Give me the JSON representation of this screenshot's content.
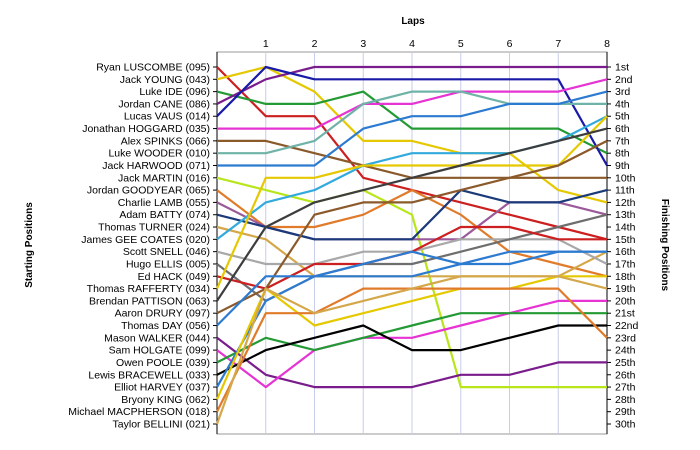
{
  "chart_data": {
    "type": "line",
    "xlabel": "Laps",
    "left_axis_label": "Starting Positions",
    "right_axis_label": "Finishing Positions",
    "laps": [
      "1",
      "2",
      "3",
      "4",
      "5",
      "6",
      "7",
      "8"
    ],
    "positions": [
      "1st",
      "2nd",
      "3rd",
      "4th",
      "5th",
      "6th",
      "7th",
      "8th",
      "9th",
      "10th",
      "11th",
      "12th",
      "13th",
      "14th",
      "15th",
      "16th",
      "17th",
      "18th",
      "19th",
      "20th",
      "21st",
      "22nd",
      "23rd",
      "24th",
      "25th",
      "26th",
      "27th",
      "28th",
      "29th",
      "30th"
    ],
    "drivers": [
      {
        "name": "Ryan LUSCOMBE (095)",
        "color": "#cc1f1f",
        "positions": [
          1,
          5,
          5,
          10,
          11,
          12,
          13,
          14,
          15
        ]
      },
      {
        "name": "Jack YOUNG (043)",
        "color": "#e6c800",
        "positions": [
          2,
          1,
          3,
          7,
          7,
          8,
          8,
          11,
          12
        ]
      },
      {
        "name": "Luke IDE (096)",
        "color": "#249a35",
        "positions": [
          3,
          4,
          4,
          3,
          6,
          6,
          6,
          6,
          8
        ]
      },
      {
        "name": "Jordan CANE (086)",
        "color": "#7a1d8c",
        "positions": [
          4,
          2,
          1,
          1,
          1,
          1,
          1,
          1,
          1
        ]
      },
      {
        "name": "Lucas VAUS (014)",
        "color": "#1a1aa8",
        "positions": [
          5,
          1,
          2,
          2,
          2,
          2,
          2,
          2,
          9
        ]
      },
      {
        "name": "Jonathan HOGGARD (035)",
        "color": "#e633d3",
        "positions": [
          6,
          6,
          6,
          4,
          4,
          3,
          3,
          3,
          2
        ]
      },
      {
        "name": "Alex SPINKS (066)",
        "color": "#8b5a2b",
        "positions": [
          7,
          7,
          8,
          9,
          10,
          10,
          10,
          10,
          10
        ]
      },
      {
        "name": "Luke WOODER (010)",
        "color": "#6fb3a8",
        "positions": [
          8,
          8,
          7,
          4,
          3,
          3,
          4,
          4,
          4
        ]
      },
      {
        "name": "Jack HARWOOD (071)",
        "color": "#2c7bd0",
        "positions": [
          9,
          9,
          9,
          6,
          5,
          5,
          4,
          4,
          3
        ]
      },
      {
        "name": "Jack MARTIN (016)",
        "color": "#b8e61a",
        "positions": [
          10,
          11,
          12,
          11,
          13,
          27,
          27,
          27,
          27
        ]
      },
      {
        "name": "Jordan GOODYEAR (065)",
        "color": "#e07b2a",
        "positions": [
          11,
          14,
          14,
          13,
          11,
          13,
          16,
          17,
          18
        ]
      },
      {
        "name": "Charlie LAMB (055)",
        "color": "#9a5a9a",
        "positions": [
          12,
          14,
          15,
          15,
          15,
          15,
          12,
          12,
          13
        ]
      },
      {
        "name": "Adam BATTY (074)",
        "color": "#1b3a7a",
        "positions": [
          13,
          14,
          15,
          15,
          15,
          11,
          12,
          12,
          11
        ]
      },
      {
        "name": "Thomas TURNER (024)",
        "color": "#d4a84a",
        "positions": [
          14,
          15,
          18,
          18,
          18,
          18,
          18,
          18,
          16
        ]
      },
      {
        "name": "James GEE COATES (020)",
        "color": "#33aadd",
        "positions": [
          15,
          12,
          11,
          9,
          8,
          8,
          8,
          7,
          5
        ]
      },
      {
        "name": "Scott SNELL (046)",
        "color": "#a8a8a8",
        "positions": [
          16,
          17,
          17,
          16,
          16,
          15,
          15,
          15,
          17
        ]
      },
      {
        "name": "Hugo ELLIS (005)",
        "color": "#6e6e6e",
        "positions": [
          17,
          20,
          18,
          17,
          17,
          16,
          15,
          14,
          13
        ]
      },
      {
        "name": "Ed HACK (049)",
        "color": "#cc1f1f",
        "positions": [
          18,
          19,
          17,
          17,
          16,
          14,
          14,
          15,
          15
        ]
      },
      {
        "name": "Thomas RAFFERTY (034)",
        "color": "#e6c800",
        "positions": [
          19,
          10,
          10,
          9,
          9,
          9,
          9,
          9,
          5
        ]
      },
      {
        "name": "Brendan PATTISON (063)",
        "color": "#3d3d3d",
        "positions": [
          20,
          14,
          12,
          11,
          10,
          9,
          8,
          7,
          6
        ]
      },
      {
        "name": "Aaron DRURY (097)",
        "color": "#8b5a2b",
        "positions": [
          21,
          19,
          13,
          12,
          12,
          11,
          10,
          9,
          7
        ]
      },
      {
        "name": "Thomas DAY (056)",
        "color": "#2c7bd0",
        "positions": [
          22,
          18,
          18,
          17,
          16,
          17,
          16,
          16,
          16
        ]
      },
      {
        "name": "Mason WALKER (044)",
        "color": "#7a1d8c",
        "positions": [
          23,
          26,
          27,
          27,
          27,
          26,
          26,
          25,
          25
        ]
      },
      {
        "name": "Sam HOLGATE (099)",
        "color": "#e633d3",
        "positions": [
          24,
          27,
          24,
          23,
          23,
          22,
          21,
          20,
          20
        ]
      },
      {
        "name": "Owen POOLE (039)",
        "color": "#249a35",
        "positions": [
          25,
          23,
          24,
          23,
          22,
          21,
          21,
          21,
          21
        ]
      },
      {
        "name": "Lewis BRACEWELL (033)",
        "color": "#000000",
        "positions": [
          26,
          24,
          23,
          22,
          24,
          24,
          23,
          22,
          22
        ]
      },
      {
        "name": "Elliot HARVEY (037)",
        "color": "#2c7bd0",
        "positions": [
          27,
          20,
          18,
          18,
          18,
          17,
          17,
          16,
          16
        ]
      },
      {
        "name": "Bryony KING (062)",
        "color": "#e6c800",
        "positions": [
          28,
          19,
          22,
          21,
          20,
          19,
          19,
          18,
          18
        ]
      },
      {
        "name": "Michael MACPHERSON (018)",
        "color": "#e07b2a",
        "positions": [
          29,
          21,
          21,
          19,
          19,
          19,
          19,
          19,
          23
        ]
      },
      {
        "name": "Taylor BELLINI (021)",
        "color": "#d4a84a",
        "positions": [
          30,
          19,
          21,
          20,
          19,
          18,
          18,
          18,
          19
        ]
      }
    ]
  }
}
